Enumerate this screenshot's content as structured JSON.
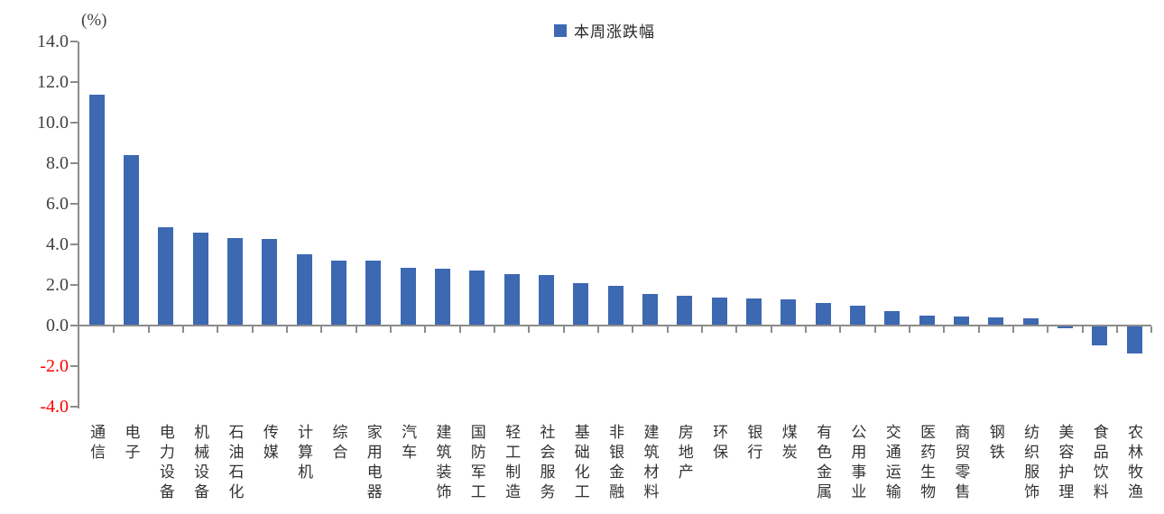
{
  "chart_data": {
    "type": "bar",
    "unit_label": "(%)",
    "series": [
      {
        "name": "本周涨跌幅",
        "color": "#3d68b2"
      }
    ],
    "categories": [
      "通信",
      "电子",
      "电力设备",
      "机械设备",
      "石油石化",
      "传媒",
      "计算机",
      "综合",
      "家用电器",
      "汽车",
      "建筑装饰",
      "国防军工",
      "轻工制造",
      "社会服务",
      "基础化工",
      "非银金融",
      "建筑材料",
      "房地产",
      "环保",
      "银行",
      "煤炭",
      "有色金属",
      "公用事业",
      "交通运输",
      "医药生物",
      "商贸零售",
      "钢铁",
      "纺织服饰",
      "美容护理",
      "食品饮料",
      "农林牧渔"
    ],
    "values": [
      11.4,
      8.4,
      4.85,
      4.6,
      4.3,
      4.25,
      3.5,
      3.2,
      3.2,
      2.85,
      2.8,
      2.7,
      2.55,
      2.5,
      2.1,
      1.95,
      1.55,
      1.45,
      1.4,
      1.35,
      1.3,
      1.1,
      1.0,
      0.7,
      0.5,
      0.45,
      0.4,
      0.35,
      -0.1,
      -0.95,
      -1.35
    ],
    "yticks": [
      {
        "label": "14.0",
        "value": 14
      },
      {
        "label": "12.0",
        "value": 12
      },
      {
        "label": "10.0",
        "value": 10
      },
      {
        "label": "8.0",
        "value": 8
      },
      {
        "label": "6.0",
        "value": 6
      },
      {
        "label": "4.0",
        "value": 4
      },
      {
        "label": "2.0",
        "value": 2
      },
      {
        "label": "0.0",
        "value": 0
      },
      {
        "label": "-2.0",
        "value": -2
      },
      {
        "label": "-4.0",
        "value": -4
      }
    ],
    "ylim": [
      -4.0,
      14.0
    ],
    "grid": false,
    "legend_position": "top-center",
    "colors": {
      "bar": "#3d68b2",
      "axis": "#8c8c8c",
      "tick_label": "#404040",
      "negative_tick_label": "#ff0000",
      "category_label": "#333333",
      "background": "#ffffff"
    }
  }
}
